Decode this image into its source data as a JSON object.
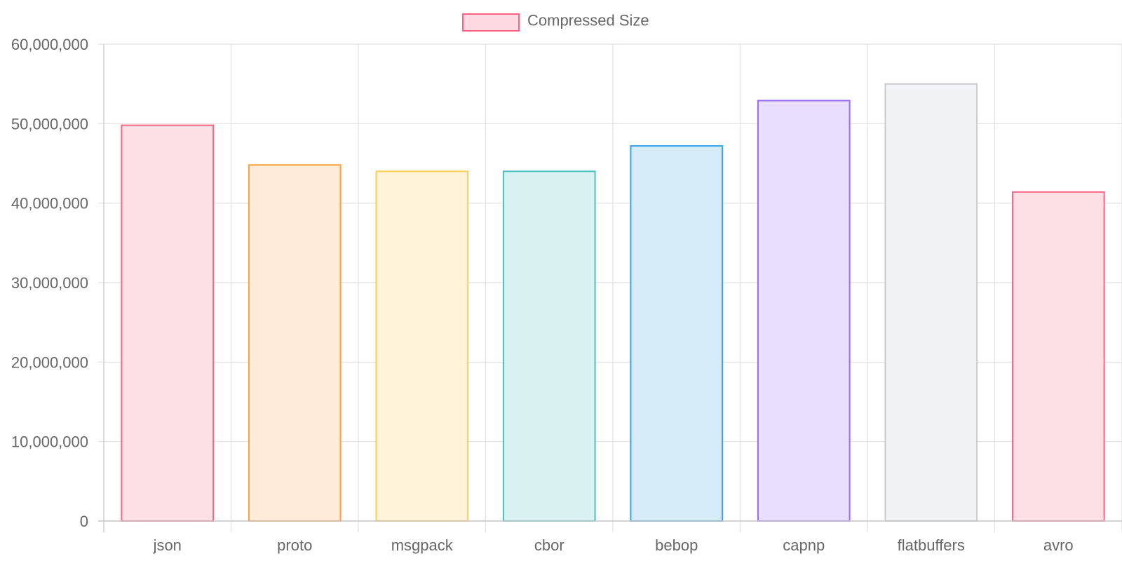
{
  "chart_data": {
    "type": "bar",
    "legend": {
      "position": "top",
      "label": "Compressed Size",
      "swatch_fill": "#fdd9e1",
      "swatch_stroke": "#ff6384"
    },
    "categories": [
      "json",
      "proto",
      "msgpack",
      "cbor",
      "bebop",
      "capnp",
      "flatbuffers",
      "avro"
    ],
    "series": [
      {
        "name": "Compressed Size",
        "values": [
          49800000,
          44800000,
          44000000,
          44000000,
          47200000,
          52900000,
          55000000,
          41400000
        ]
      }
    ],
    "bar_colors": [
      {
        "fill": "#fde0e6",
        "stroke": "#ff6384"
      },
      {
        "fill": "#feebd8",
        "stroke": "#ff9f40"
      },
      {
        "fill": "#fff3d9",
        "stroke": "#ffcd56"
      },
      {
        "fill": "#d9f1f1",
        "stroke": "#4bc0c0"
      },
      {
        "fill": "#d6ebf8",
        "stroke": "#36a2eb"
      },
      {
        "fill": "#e8dffe",
        "stroke": "#9966ff"
      },
      {
        "fill": "#f1f2f3",
        "stroke": "#c9cbcf"
      },
      {
        "fill": "#fde0e6",
        "stroke": "#ff6384"
      }
    ],
    "ylim": [
      0,
      60000000
    ],
    "yticks": [
      0,
      10000000,
      20000000,
      30000000,
      40000000,
      50000000,
      60000000
    ],
    "ytick_labels": [
      "0",
      "10,000,000",
      "20,000,000",
      "30,000,000",
      "40,000,000",
      "50,000,000",
      "60,000,000"
    ],
    "grid": true,
    "title": "",
    "xlabel": "",
    "ylabel": ""
  }
}
